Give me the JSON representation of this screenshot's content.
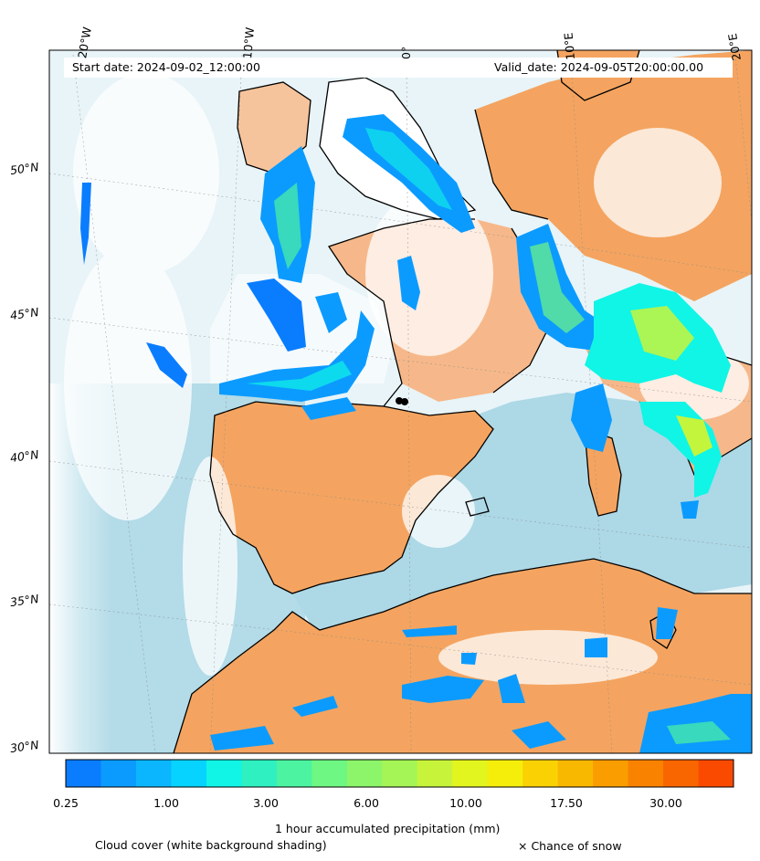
{
  "header": {
    "start_date": "Start date: 2024-09-02_12:00:00",
    "valid_date": "Valid_date: 2024-09-05T20:00:00.00"
  },
  "grid": {
    "lon_labels": [
      "20°W",
      "10°W",
      "0°",
      "10°E",
      "20°E"
    ],
    "lat_labels": [
      "50°N",
      "45°N",
      "40°N",
      "35°N",
      "30°N"
    ]
  },
  "colorbar": {
    "tick_labels": [
      "0.25",
      "1.00",
      "3.00",
      "6.00",
      "10.00",
      "17.50",
      "30.00"
    ],
    "colors": [
      "#0a7dff",
      "#0b9bff",
      "#0bb6ff",
      "#06d3ff",
      "#10f5e6",
      "#2ef0c0",
      "#4cf3a0",
      "#6ef783",
      "#8df56a",
      "#a6f556",
      "#c7f43b",
      "#e3f51e",
      "#f5ee0b",
      "#fad204",
      "#f9b800",
      "#f99d00",
      "#f98200",
      "#f96600",
      "#fa4a00"
    ],
    "label": "1 hour accumulated precipitation (mm)"
  },
  "footer": {
    "cloud_note": "Cloud cover (white background shading)",
    "snow_note": "× Chance of snow"
  },
  "colors": {
    "land": "#f4a460",
    "sea": "#add8e6",
    "cloud": "#ffffff"
  }
}
